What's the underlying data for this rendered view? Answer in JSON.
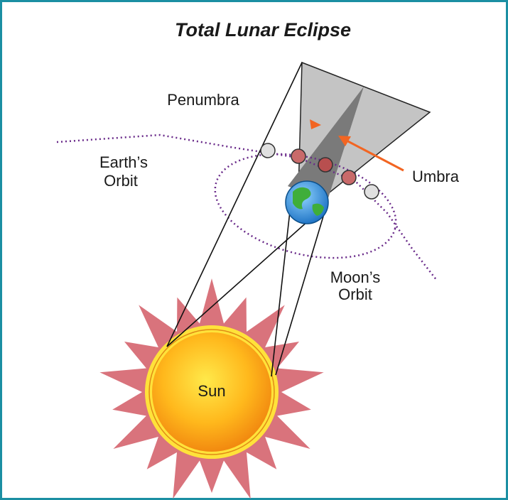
{
  "title": "Total Lunar Eclipse",
  "labels": {
    "penumbra": "Penumbra",
    "earths_orbit": [
      "Earth’s",
      "Orbit"
    ],
    "umbra": "Umbra",
    "moons_orbit": [
      "Moon’s",
      "Orbit"
    ],
    "sun": "Sun"
  }
}
